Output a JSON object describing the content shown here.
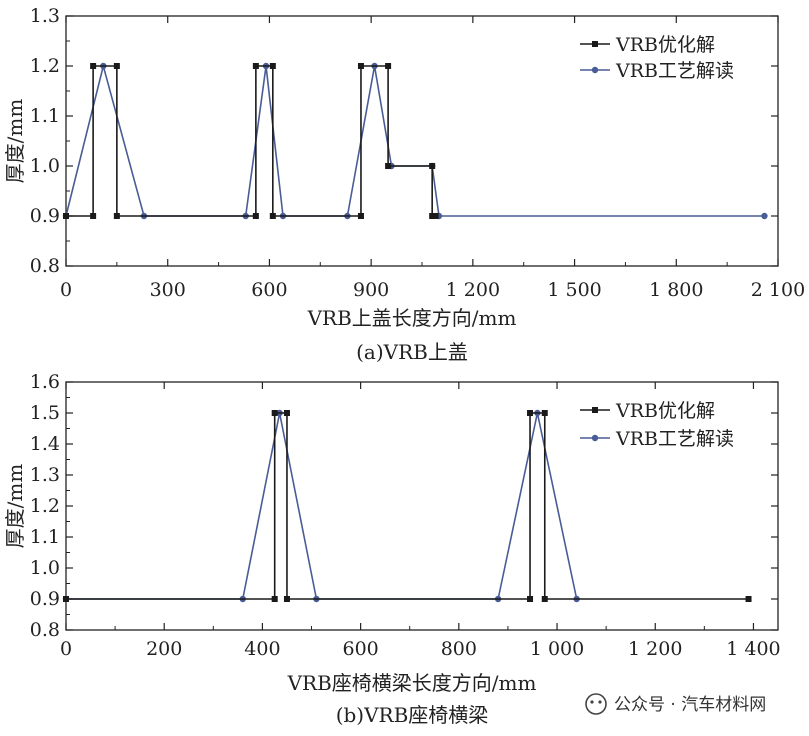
{
  "watermark": "公众号 · 汽车材料网",
  "colors": {
    "optimized": "#1a1a1a",
    "process": "#4a5c95",
    "axis": "#222222"
  },
  "chart_data": [
    {
      "type": "line",
      "caption": "(a)VRB上盖",
      "xlabel": "VRB上盖长度方向/mm",
      "ylabel": "厚度/mm",
      "xlim": [
        0,
        2100
      ],
      "ylim": [
        0.8,
        1.3
      ],
      "xticks": [
        0,
        300,
        600,
        900,
        1200,
        1500,
        1800,
        2100
      ],
      "xtick_labels": [
        "0",
        "300",
        "600",
        "900",
        "1 200",
        "1 500",
        "1 800",
        "2 100"
      ],
      "yticks": [
        0.8,
        0.9,
        1.0,
        1.1,
        1.2,
        1.3
      ],
      "ytick_labels": [
        "0.8",
        "0.9",
        "1.0",
        "1.1",
        "1.2",
        "1.3"
      ],
      "legend_position": "top-right",
      "grid": false,
      "series": [
        {
          "name": "VRB优化解",
          "marker": "square",
          "color": "#1a1a1a",
          "points": [
            [
              0,
              0.9
            ],
            [
              80,
              0.9
            ],
            [
              80,
              1.2
            ],
            [
              150,
              1.2
            ],
            [
              150,
              0.9
            ],
            [
              560,
              0.9
            ],
            [
              560,
              1.2
            ],
            [
              610,
              1.2
            ],
            [
              610,
              0.9
            ],
            [
              870,
              0.9
            ],
            [
              870,
              1.2
            ],
            [
              950,
              1.2
            ],
            [
              950,
              1.0
            ],
            [
              1080,
              1.0
            ],
            [
              1080,
              0.9
            ],
            [
              1090,
              0.9
            ]
          ]
        },
        {
          "name": "VRB工艺解读",
          "marker": "circle",
          "color": "#4a5c95",
          "points": [
            [
              0,
              0.9
            ],
            [
              110,
              1.2
            ],
            [
              230,
              0.9
            ],
            [
              530,
              0.9
            ],
            [
              590,
              1.2
            ],
            [
              640,
              0.9
            ],
            [
              830,
              0.9
            ],
            [
              910,
              1.2
            ],
            [
              960,
              1.0
            ],
            [
              1080,
              1.0
            ],
            [
              1100,
              0.9
            ],
            [
              2060,
              0.9
            ]
          ]
        }
      ]
    },
    {
      "type": "line",
      "caption": "(b)VRB座椅横梁",
      "xlabel": "VRB座椅横梁长度方向/mm",
      "ylabel": "厚度/mm",
      "xlim": [
        0,
        1450
      ],
      "ylim": [
        0.8,
        1.6
      ],
      "xticks": [
        0,
        200,
        400,
        600,
        800,
        1000,
        1200,
        1400
      ],
      "xtick_labels": [
        "0",
        "200",
        "400",
        "600",
        "800",
        "1 000",
        "1 200",
        "1 400"
      ],
      "yticks": [
        0.8,
        0.9,
        1.0,
        1.1,
        1.2,
        1.3,
        1.4,
        1.5,
        1.6
      ],
      "ytick_labels": [
        "0.8",
        "0.9",
        "1.0",
        "1.1",
        "1.2",
        "1.3",
        "1.4",
        "1.5",
        "1.6"
      ],
      "legend_position": "top-right",
      "grid": false,
      "series": [
        {
          "name": "VRB优化解",
          "marker": "square",
          "color": "#1a1a1a",
          "points": [
            [
              0,
              0.9
            ],
            [
              425,
              0.9
            ],
            [
              425,
              1.5
            ],
            [
              450,
              1.5
            ],
            [
              450,
              0.9
            ],
            [
              945,
              0.9
            ],
            [
              945,
              1.5
            ],
            [
              975,
              1.5
            ],
            [
              975,
              0.9
            ],
            [
              1390,
              0.9
            ]
          ]
        },
        {
          "name": "VRB工艺解读",
          "marker": "circle",
          "color": "#4a5c95",
          "points": [
            [
              0,
              0.9
            ],
            [
              360,
              0.9
            ],
            [
              435,
              1.5
            ],
            [
              510,
              0.9
            ],
            [
              880,
              0.9
            ],
            [
              960,
              1.5
            ],
            [
              1040,
              0.9
            ]
          ]
        }
      ]
    }
  ]
}
